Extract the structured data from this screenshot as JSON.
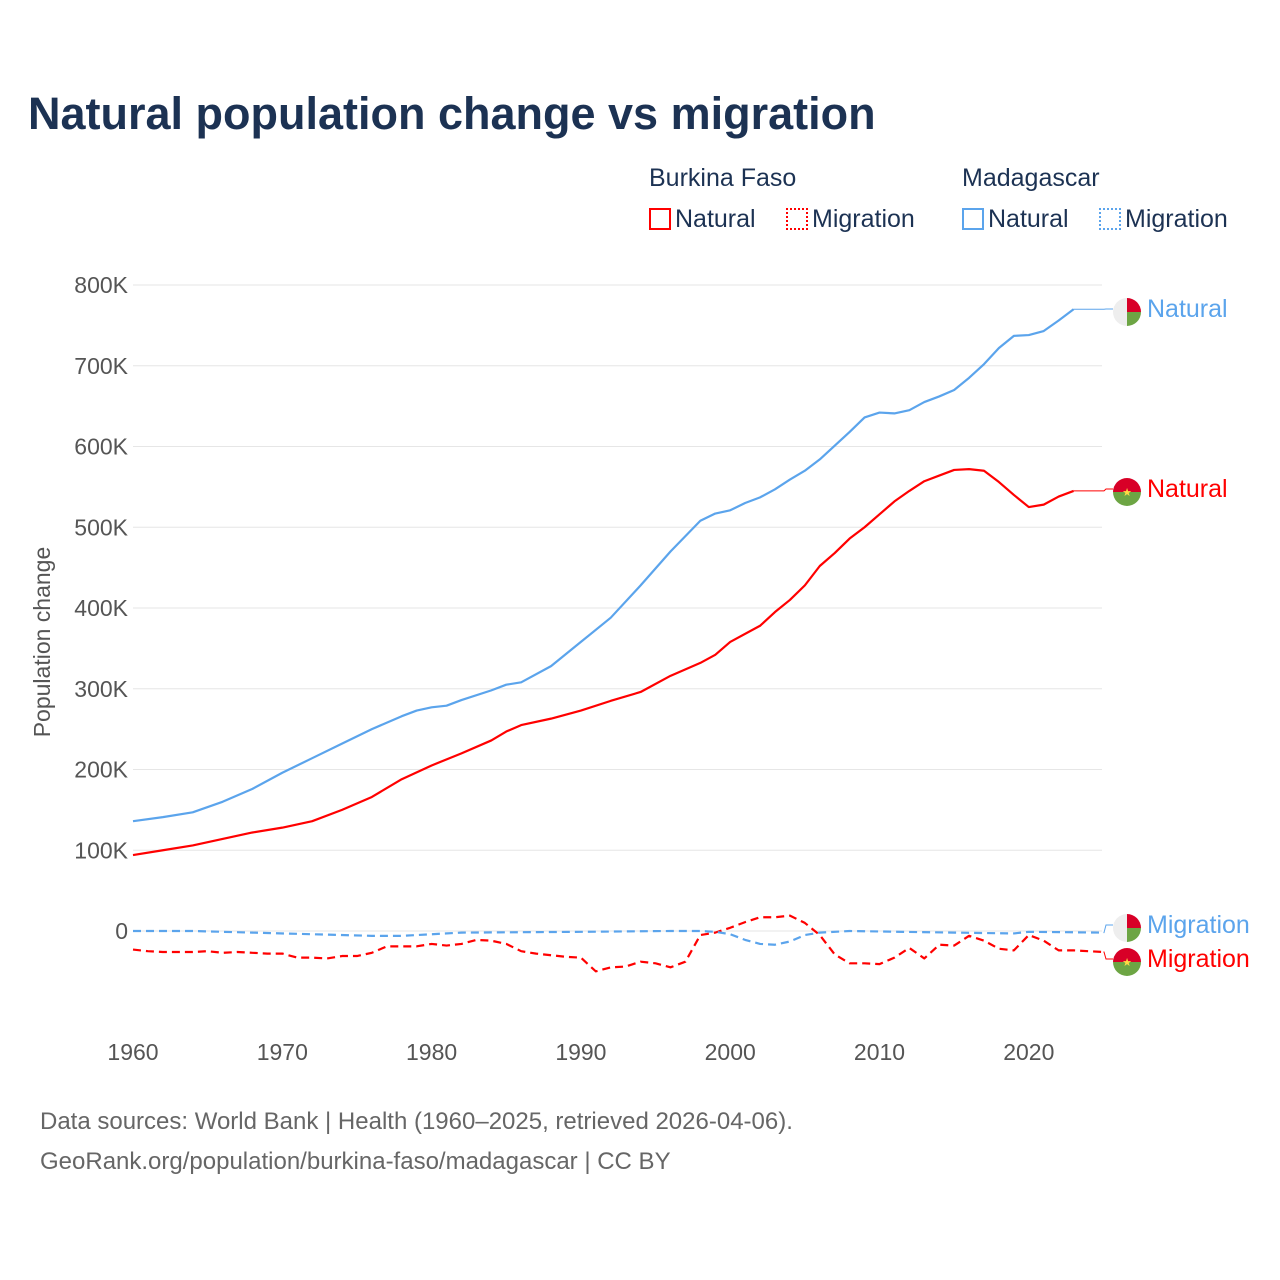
{
  "title": "Natural population change vs migration",
  "legend": {
    "groups": [
      {
        "name": "Burkina Faso",
        "items": [
          "Natural",
          "Migration"
        ],
        "color": "#ff0000"
      },
      {
        "name": "Madagascar",
        "items": [
          "Natural",
          "Migration"
        ],
        "color": "#5ba4ec"
      }
    ]
  },
  "footer": {
    "line1": "Data sources: World Bank | Health (1960–2025, retrieved 2026-04-06).",
    "line2": "GeoRank.org/population/burkina-faso/madagascar | CC BY"
  },
  "chart_data": {
    "type": "line",
    "title": "Natural population change vs migration",
    "xlabel": "",
    "ylabel": "Population change",
    "xlim": [
      1960,
      2025
    ],
    "ylim": [
      -100000,
      800000
    ],
    "yticks": [
      0,
      100000,
      200000,
      300000,
      400000,
      500000,
      600000,
      700000,
      800000
    ],
    "ytick_labels": [
      "0",
      "100K",
      "200K",
      "300K",
      "400K",
      "500K",
      "600K",
      "700K",
      "800K"
    ],
    "xticks": [
      1960,
      1970,
      1980,
      1990,
      2000,
      2010,
      2020
    ],
    "grid": true,
    "end_labels": [
      "Natural",
      "Natural",
      "Migration",
      "Migration"
    ],
    "series": [
      {
        "name": "Burkina Faso Natural",
        "color": "#ff0000",
        "dash": false,
        "x": [
          1960,
          1962,
          1964,
          1966,
          1968,
          1970,
          1972,
          1974,
          1976,
          1978,
          1980,
          1982,
          1984,
          1985,
          1986,
          1988,
          1990,
          1992,
          1994,
          1996,
          1998,
          1999,
          2000,
          2002,
          2003,
          2004,
          2005,
          2006,
          2007,
          2008,
          2009,
          2010,
          2011,
          2012,
          2013,
          2014,
          2015,
          2016,
          2017,
          2018,
          2019,
          2020,
          2021,
          2022,
          2023
        ],
        "y": [
          94000,
          100000,
          106000,
          114000,
          122000,
          128000,
          136000,
          150000,
          166000,
          188000,
          205000,
          220000,
          236000,
          247000,
          255000,
          263000,
          273000,
          285000,
          296000,
          316000,
          332000,
          342000,
          358000,
          378000,
          395000,
          410000,
          428000,
          452000,
          468000,
          486000,
          500000,
          516000,
          532000,
          545000,
          557000,
          564000,
          571000,
          572000,
          570000,
          556000,
          540000,
          525000,
          528000,
          538000,
          545000
        ]
      },
      {
        "name": "Madagascar Natural",
        "color": "#5ba4ec",
        "dash": false,
        "x": [
          1960,
          1962,
          1964,
          1966,
          1968,
          1970,
          1972,
          1974,
          1976,
          1978,
          1979,
          1980,
          1981,
          1982,
          1984,
          1985,
          1986,
          1988,
          1990,
          1992,
          1994,
          1996,
          1998,
          1999,
          2000,
          2001,
          2002,
          2003,
          2004,
          2005,
          2006,
          2007,
          2008,
          2009,
          2010,
          2011,
          2012,
          2013,
          2014,
          2015,
          2016,
          2017,
          2018,
          2019,
          2020,
          2021,
          2022,
          2023
        ],
        "y": [
          136000,
          141000,
          147000,
          160000,
          176000,
          196000,
          214000,
          232000,
          250000,
          266000,
          273000,
          277000,
          279000,
          286000,
          298000,
          305000,
          308000,
          328000,
          358000,
          388000,
          428000,
          470000,
          508000,
          517000,
          521000,
          530000,
          537000,
          547000,
          559000,
          570000,
          584000,
          601000,
          618000,
          636000,
          642000,
          641000,
          645000,
          655000,
          662000,
          670000,
          685000,
          702000,
          722000,
          737000,
          738000,
          743000,
          756000,
          770000
        ]
      },
      {
        "name": "Burkina Faso Migration",
        "color": "#ff0000",
        "dash": true,
        "x": [
          1960,
          1961,
          1962,
          1963,
          1964,
          1965,
          1966,
          1967,
          1968,
          1969,
          1970,
          1971,
          1972,
          1973,
          1974,
          1975,
          1976,
          1977,
          1978,
          1979,
          1980,
          1981,
          1982,
          1983,
          1984,
          1985,
          1986,
          1987,
          1988,
          1989,
          1990,
          1991,
          1992,
          1993,
          1994,
          1995,
          1996,
          1997,
          1998,
          1999,
          2000,
          2001,
          2002,
          2003,
          2004,
          2005,
          2006,
          2007,
          2008,
          2009,
          2010,
          2011,
          2012,
          2013,
          2014,
          2015,
          2016,
          2017,
          2018,
          2019,
          2020,
          2021,
          2022,
          2023,
          2024,
          2025
        ],
        "y": [
          -23000,
          -25000,
          -26000,
          -26000,
          -26000,
          -25000,
          -27000,
          -26000,
          -27000,
          -28000,
          -28000,
          -33000,
          -33000,
          -34000,
          -31000,
          -31000,
          -27000,
          -19000,
          -19000,
          -19000,
          -16000,
          -18000,
          -16000,
          -11000,
          -12000,
          -16000,
          -25000,
          -28000,
          -30000,
          -32000,
          -33000,
          -50000,
          -45000,
          -44000,
          -38000,
          -40000,
          -45000,
          -38000,
          -5000,
          -2000,
          4000,
          11000,
          17000,
          17000,
          19000,
          10000,
          -5000,
          -29000,
          -40000,
          -40000,
          -41000,
          -33000,
          -21000,
          -34000,
          -17000,
          -18000,
          -6000,
          -12000,
          -22000,
          -24000,
          -5000,
          -12000,
          -24000,
          -24000,
          -25000,
          -26000
        ]
      },
      {
        "name": "Madagascar Migration",
        "color": "#5ba4ec",
        "dash": true,
        "x": [
          1960,
          1964,
          1968,
          1972,
          1976,
          1978,
          1982,
          1990,
          1996,
          1998,
          1999,
          2000,
          2001,
          2002,
          2003,
          2004,
          2005,
          2006,
          2008,
          2015,
          2019,
          2020,
          2025
        ],
        "y": [
          0,
          0,
          -2000,
          -4000,
          -6000,
          -6000,
          -2000,
          -1000,
          0,
          0,
          -1000,
          -4000,
          -11000,
          -16000,
          -17000,
          -13000,
          -5000,
          -2000,
          0,
          -2000,
          -3000,
          -1000,
          -2000
        ]
      }
    ]
  }
}
